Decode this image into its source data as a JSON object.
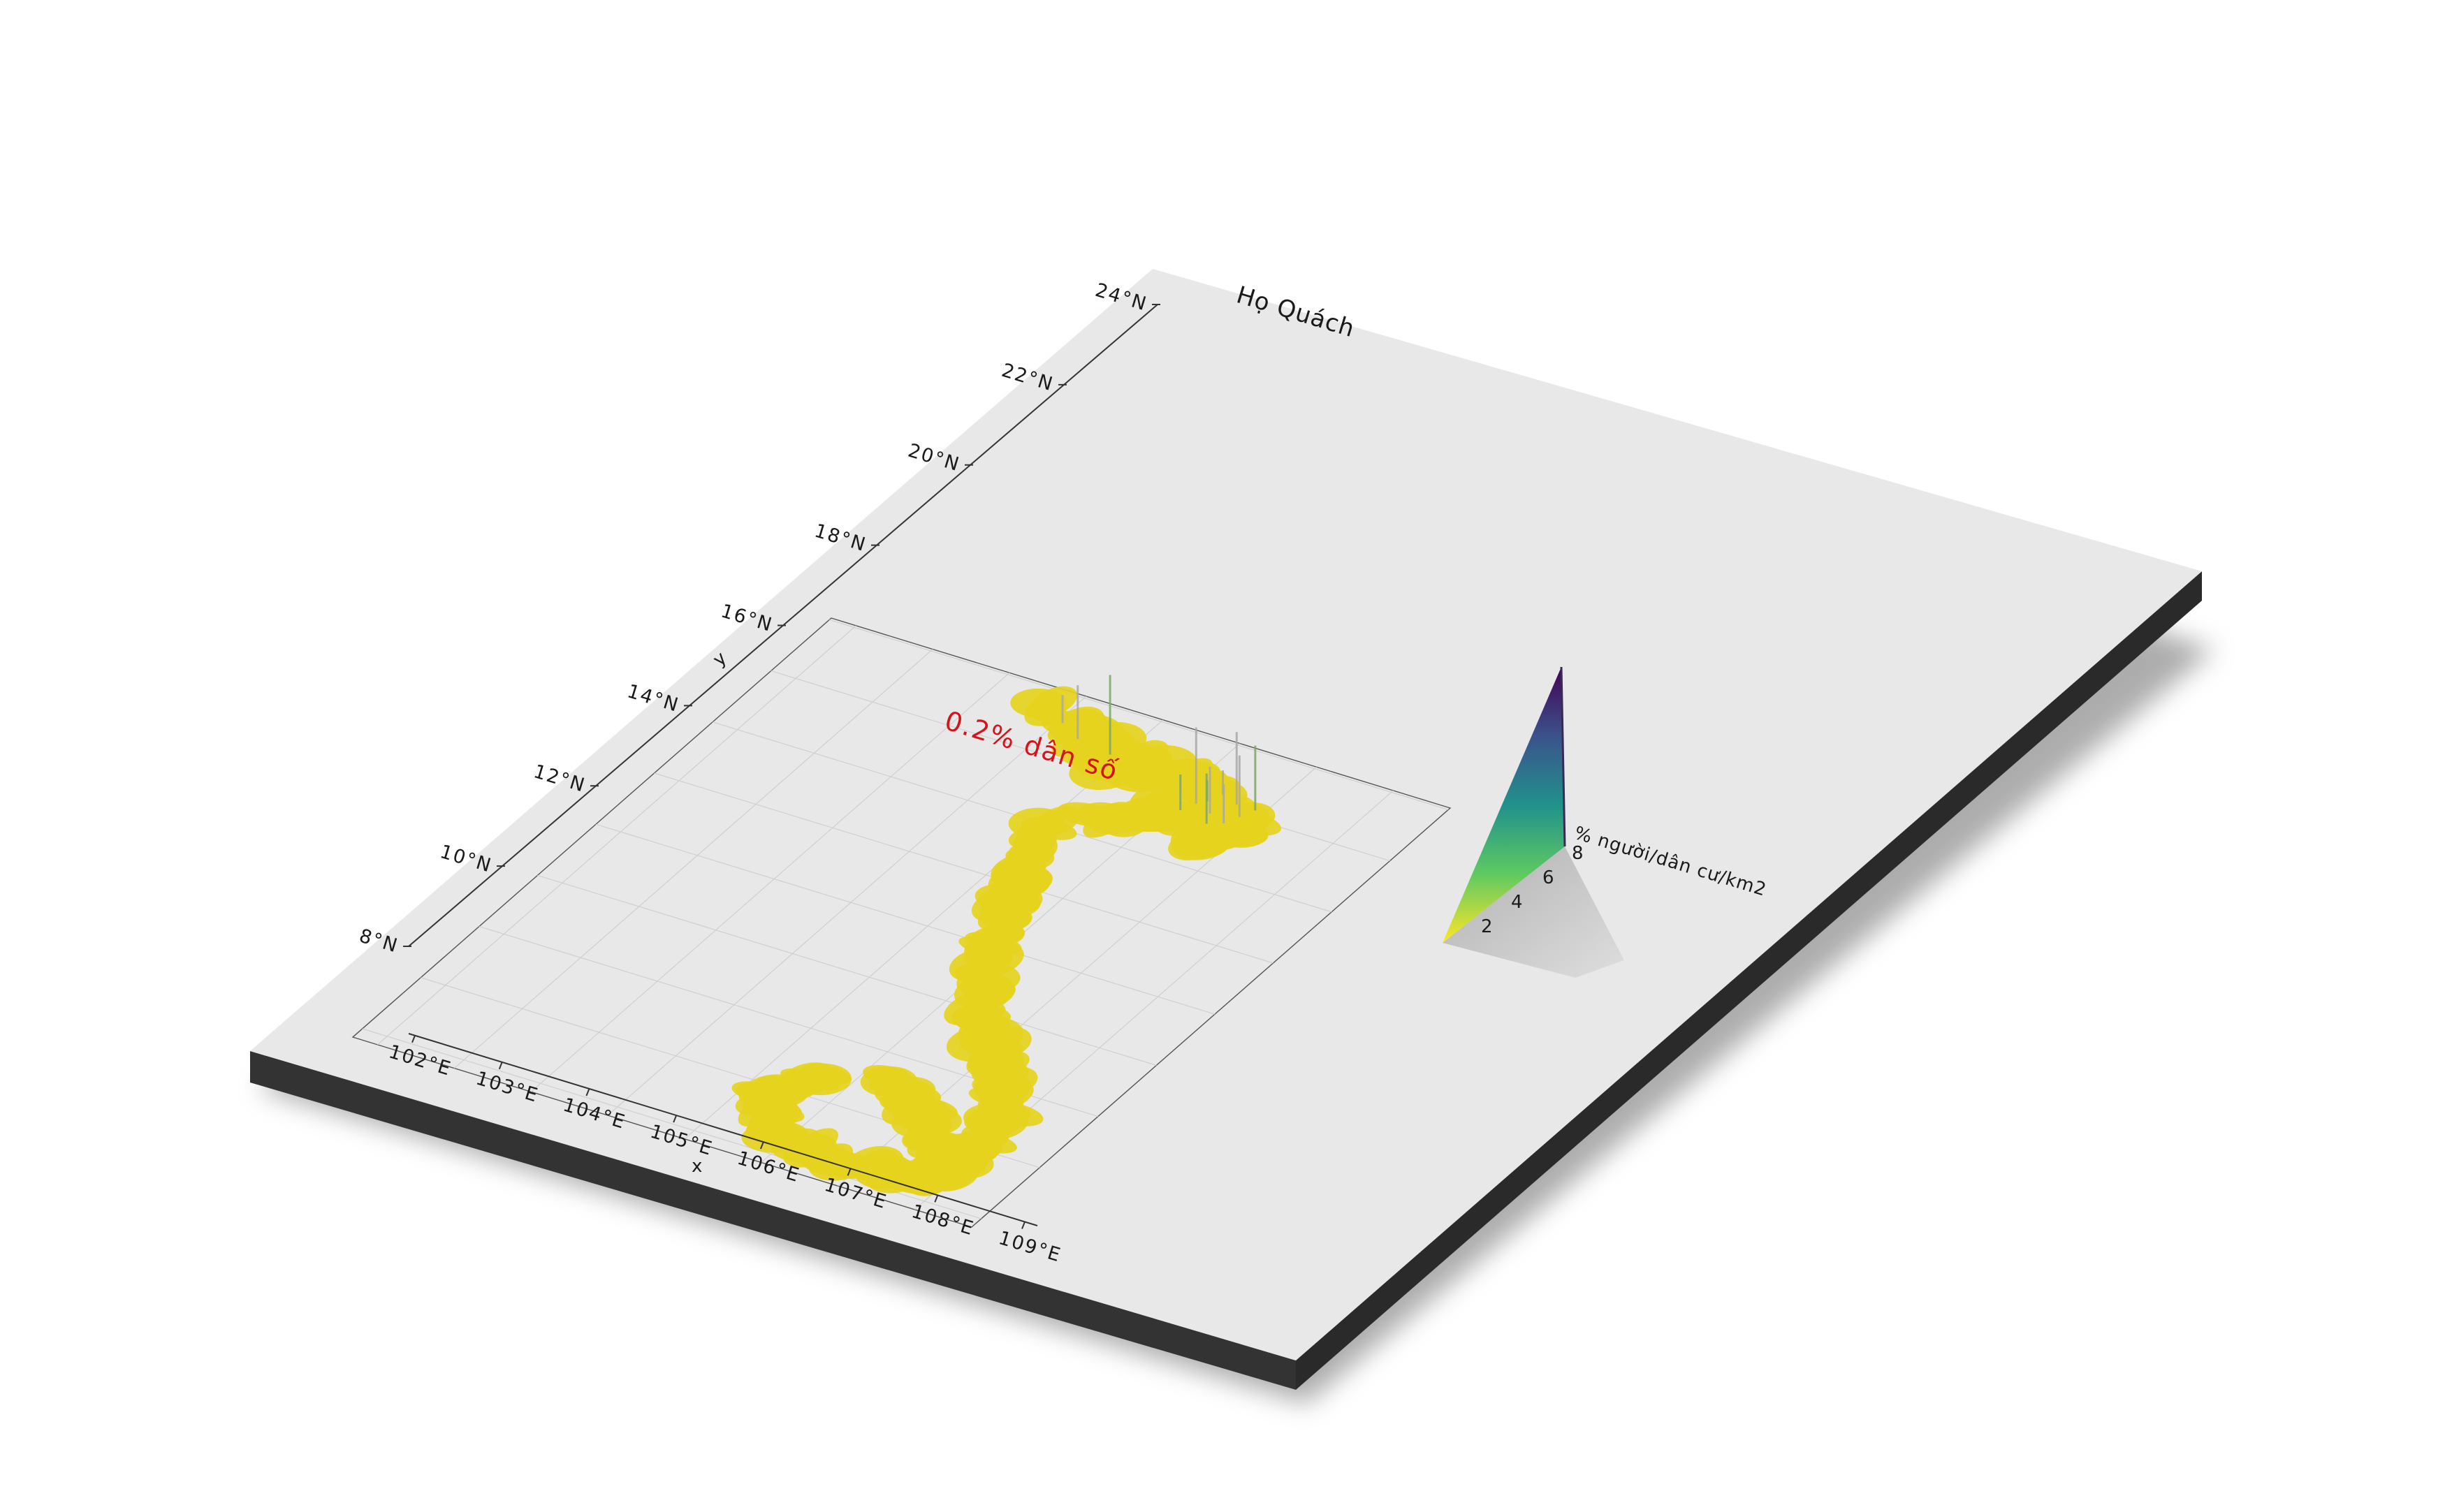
{
  "title": "Họ Quách",
  "annotation": "0.2% dân số",
  "x_axis": {
    "name": "x",
    "ticks": [
      "102°E",
      "103°E",
      "104°E",
      "105°E",
      "106°E",
      "107°E",
      "108°E",
      "109°E"
    ]
  },
  "y_axis": {
    "name": "y",
    "ticks": [
      "8°N",
      "10°N",
      "12°N",
      "14°N",
      "16°N",
      "18°N",
      "20°N",
      "22°N",
      "24°N"
    ]
  },
  "legend": {
    "title": "% người/dân cư/km2",
    "ticks": [
      "2",
      "4",
      "6",
      "8"
    ],
    "colormap": [
      "#fde725",
      "#5ec962",
      "#21918c",
      "#3b528b",
      "#440154"
    ]
  },
  "colors": {
    "plate_top": "#e8e8e8",
    "plate_side": "#333333",
    "region_fill": "#e6d21e",
    "annotation": "#d4141b"
  }
}
